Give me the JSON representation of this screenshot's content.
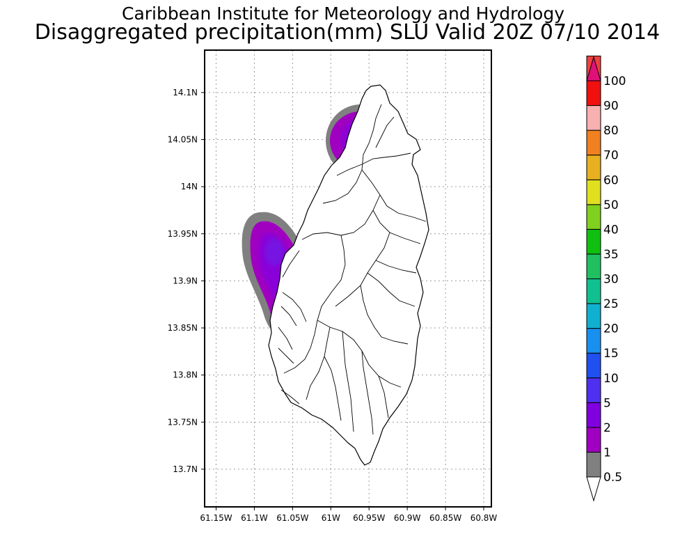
{
  "title": {
    "line1": "Caribbean Institute for Meteorology and Hydrology",
    "line2": "Disaggregated precipitation(mm) SLU Valid 20Z 07/10 2014"
  },
  "chart_data": {
    "type": "heatmap",
    "map_region": "Saint Lucia",
    "lon_range": [
      -61.165,
      -60.79
    ],
    "lat_range": [
      13.66,
      14.145
    ],
    "x_ticks": [
      "61.15W",
      "61.1W",
      "61.05W",
      "61W",
      "60.95W",
      "60.9W",
      "60.85W",
      "60.8W"
    ],
    "x_tick_values": [
      -61.15,
      -61.1,
      -61.05,
      -61.0,
      -60.95,
      -60.9,
      -60.85,
      -60.8
    ],
    "y_ticks": [
      "14.1N",
      "14.05N",
      "14N",
      "13.95N",
      "13.9N",
      "13.85N",
      "13.8N",
      "13.75N",
      "13.7N"
    ],
    "y_tick_values": [
      14.1,
      14.05,
      14.0,
      13.95,
      13.9,
      13.85,
      13.8,
      13.75,
      13.7
    ],
    "grid": true,
    "colorbar": {
      "placement": "right",
      "labels": [
        "0.5",
        "1",
        "2",
        "5",
        "10",
        "15",
        "20",
        "25",
        "30",
        "35",
        "40",
        "50",
        "60",
        "70",
        "80",
        "90",
        "100"
      ],
      "colors": [
        "#808080",
        "#a000c0",
        "#8000e0",
        "#5030f0",
        "#2050f0",
        "#1890f0",
        "#10b0d0",
        "#10c090",
        "#20c060",
        "#10c010",
        "#80d020",
        "#e0e020",
        "#e8b020",
        "#f08020",
        "#f8b0b0",
        "#f01010",
        "#f04040",
        "#e0107a"
      ],
      "below_min_color": "#ffffff"
    },
    "precip_areas": [
      {
        "region": "north",
        "center_lon": -60.96,
        "center_lat": 14.05,
        "level_range": [
          "0.5",
          "5"
        ]
      },
      {
        "region": "west",
        "center_lon": -61.07,
        "center_lat": 13.905,
        "level_range": [
          "0.5",
          "5"
        ]
      }
    ]
  }
}
